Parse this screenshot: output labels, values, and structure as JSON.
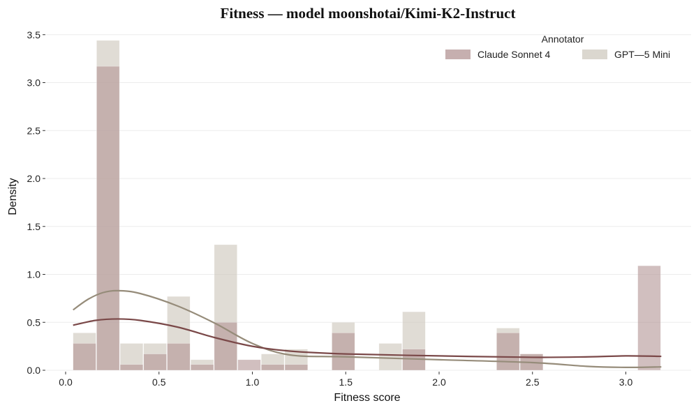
{
  "chart_data": {
    "type": "histogram",
    "title": "Fitness — model moonshotai/Kimi-K2-Instruct",
    "xlabel": "Fitness score",
    "ylabel": "Density",
    "xlim": [
      -0.05,
      3.35
    ],
    "ylim": [
      0,
      3.55
    ],
    "xticks": [
      0.0,
      0.5,
      1.0,
      1.5,
      2.0,
      2.5,
      3.0
    ],
    "xtick_labels": [
      "0.0",
      "0.5",
      "1.0",
      "1.5",
      "2.0",
      "2.5",
      "3.0"
    ],
    "yticks": [
      0.0,
      0.5,
      1.0,
      1.5,
      2.0,
      2.5,
      3.0,
      3.5
    ],
    "ytick_labels": [
      "0.0",
      "0.5",
      "1.0",
      "1.5",
      "2.0",
      "2.5",
      "3.0",
      "3.5"
    ],
    "grid": true,
    "legend": {
      "title": "Annotator",
      "position": "top-right"
    },
    "bin_edges": [
      0.04,
      0.166,
      0.292,
      0.418,
      0.544,
      0.67,
      0.796,
      0.922,
      1.048,
      1.174,
      1.3,
      1.426,
      1.552,
      1.678,
      1.804,
      1.93,
      2.056,
      2.182,
      2.308,
      2.434,
      2.56,
      2.686,
      2.812,
      2.938,
      3.064,
      3.19
    ],
    "series": [
      {
        "name": "Claude Sonnet 4",
        "color": "#b39494",
        "kde_color": "#7a4848",
        "density": [
          0.28,
          3.17,
          0.06,
          0.17,
          0.28,
          0.06,
          0.5,
          0.11,
          0.06,
          0.06,
          0.0,
          0.39,
          0.0,
          0.0,
          0.22,
          0.0,
          0.0,
          0.0,
          0.39,
          0.17,
          0.0,
          0.0,
          0.0,
          0.0,
          1.09
        ],
        "kde_x": [
          0.04,
          0.16,
          0.28,
          0.4,
          0.6,
          0.8,
          1.0,
          1.2,
          1.5,
          2.0,
          2.5,
          2.8,
          3.0,
          3.19
        ],
        "kde_y": [
          0.47,
          0.52,
          0.535,
          0.52,
          0.45,
          0.34,
          0.25,
          0.2,
          0.17,
          0.15,
          0.135,
          0.14,
          0.15,
          0.145
        ]
      },
      {
        "name": "GPT—5 Mini",
        "color": "#cfc9bf",
        "kde_color": "#968c7a",
        "density": [
          0.39,
          3.44,
          0.28,
          0.28,
          0.77,
          0.11,
          1.31,
          0.0,
          0.17,
          0.22,
          0.0,
          0.5,
          0.0,
          0.28,
          0.61,
          0.0,
          0.0,
          0.0,
          0.44,
          0.17,
          0.0,
          0.0,
          0.0,
          0.0,
          0.0
        ],
        "kde_x": [
          0.04,
          0.12,
          0.2,
          0.28,
          0.4,
          0.6,
          0.8,
          1.0,
          1.2,
          1.5,
          2.0,
          2.5,
          2.8,
          3.0,
          3.19
        ],
        "kde_y": [
          0.63,
          0.74,
          0.81,
          0.83,
          0.8,
          0.67,
          0.49,
          0.28,
          0.16,
          0.14,
          0.11,
          0.08,
          0.04,
          0.03,
          0.035
        ]
      }
    ]
  }
}
